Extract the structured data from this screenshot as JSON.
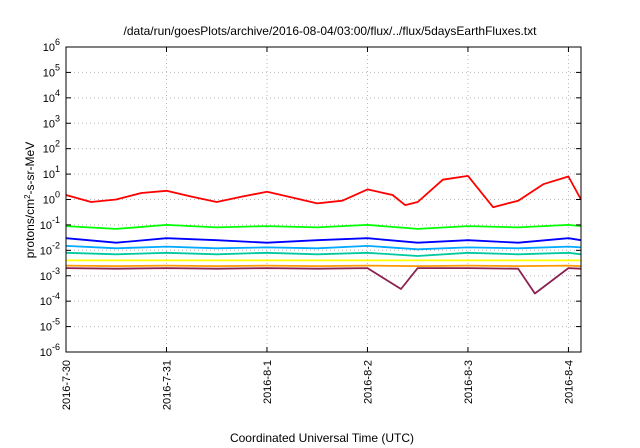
{
  "chart_data": {
    "type": "line",
    "title": "/data/run/goesPlots/archive/2016-08-04/03:00/flux/../flux/5daysEarthFluxes.txt",
    "xlabel": "Coordinated Universal Time (UTC)",
    "ylabel": "protons/cm2-s-sr-MeV",
    "ylabel_parts": {
      "pre": "protons/cm",
      "sup": "2",
      "post": "-s-sr-MeV"
    },
    "yscale": "log",
    "xlim": [
      "2016-07-30 00:00",
      "2016-08-04 03:00"
    ],
    "ylim": [
      1e-06,
      1000000.0
    ],
    "grid": true,
    "x_ticks": [
      "2016-7-30",
      "2016-7-31",
      "2016-8-1",
      "2016-8-2",
      "2016-8-3",
      "2016-8-4"
    ],
    "y_ticks": [
      {
        "base": "10",
        "exp": "-6",
        "value": 1e-06
      },
      {
        "base": "10",
        "exp": "-5",
        "value": 1e-05
      },
      {
        "base": "10",
        "exp": "-4",
        "value": 0.0001
      },
      {
        "base": "10",
        "exp": "-3",
        "value": 0.001
      },
      {
        "base": "10",
        "exp": "-2",
        "value": 0.01
      },
      {
        "base": "10",
        "exp": "-1",
        "value": 0.1
      },
      {
        "base": "10",
        "exp": "0",
        "value": 1
      },
      {
        "base": "10",
        "exp": "1",
        "value": 10
      },
      {
        "base": "10",
        "exp": "2",
        "value": 100
      },
      {
        "base": "10",
        "exp": "3",
        "value": 1000
      },
      {
        "base": "10",
        "exp": "4",
        "value": 10000
      },
      {
        "base": "10",
        "exp": "5",
        "value": 100000
      },
      {
        "base": "10",
        "exp": "6",
        "value": 1000000
      }
    ],
    "series": [
      {
        "color": "#ff0000",
        "x": [
          "2016-07-30 00:00",
          "2016-07-30 06:00",
          "2016-07-30 12:00",
          "2016-07-30 18:00",
          "2016-07-31 00:00",
          "2016-07-31 06:00",
          "2016-07-31 12:00",
          "2016-07-31 18:00",
          "2016-08-01 00:00",
          "2016-08-01 06:00",
          "2016-08-01 12:00",
          "2016-08-01 18:00",
          "2016-08-02 00:00",
          "2016-08-02 06:00",
          "2016-08-02 09:00",
          "2016-08-02 12:00",
          "2016-08-02 18:00",
          "2016-08-03 00:00",
          "2016-08-03 06:00",
          "2016-08-03 12:00",
          "2016-08-03 18:00",
          "2016-08-04 00:00",
          "2016-08-04 03:00"
        ],
        "values": [
          1.5,
          0.8,
          1.0,
          1.8,
          2.2,
          1.3,
          0.8,
          1.3,
          2.0,
          1.2,
          0.7,
          0.9,
          2.5,
          1.5,
          0.6,
          0.8,
          6.0,
          8.5,
          0.5,
          0.9,
          4.0,
          8.0,
          1.0
        ]
      },
      {
        "color": "#00ff00",
        "x": [
          "2016-07-30 00:00",
          "2016-07-30 12:00",
          "2016-07-31 00:00",
          "2016-07-31 12:00",
          "2016-08-01 00:00",
          "2016-08-01 12:00",
          "2016-08-02 00:00",
          "2016-08-02 12:00",
          "2016-08-03 00:00",
          "2016-08-03 12:00",
          "2016-08-04 00:00",
          "2016-08-04 03:00"
        ],
        "values": [
          0.09,
          0.07,
          0.1,
          0.08,
          0.09,
          0.08,
          0.1,
          0.07,
          0.09,
          0.08,
          0.1,
          0.09
        ]
      },
      {
        "color": "#0000ff",
        "x": [
          "2016-07-30 00:00",
          "2016-07-30 12:00",
          "2016-07-31 00:00",
          "2016-07-31 12:00",
          "2016-08-01 00:00",
          "2016-08-01 12:00",
          "2016-08-02 00:00",
          "2016-08-02 12:00",
          "2016-08-03 00:00",
          "2016-08-03 12:00",
          "2016-08-04 00:00",
          "2016-08-04 03:00"
        ],
        "values": [
          0.03,
          0.02,
          0.03,
          0.025,
          0.02,
          0.025,
          0.03,
          0.02,
          0.025,
          0.02,
          0.03,
          0.025
        ]
      },
      {
        "color": "#00aaff",
        "x": [
          "2016-07-30 00:00",
          "2016-07-30 12:00",
          "2016-07-31 00:00",
          "2016-07-31 12:00",
          "2016-08-01 00:00",
          "2016-08-01 12:00",
          "2016-08-02 00:00",
          "2016-08-02 12:00",
          "2016-08-03 00:00",
          "2016-08-03 12:00",
          "2016-08-04 00:00",
          "2016-08-04 03:00"
        ],
        "values": [
          0.015,
          0.012,
          0.014,
          0.012,
          0.013,
          0.012,
          0.015,
          0.011,
          0.013,
          0.012,
          0.014,
          0.013
        ]
      },
      {
        "color": "#00c8a0",
        "x": [
          "2016-07-30 00:00",
          "2016-07-30 12:00",
          "2016-07-31 00:00",
          "2016-07-31 12:00",
          "2016-08-01 00:00",
          "2016-08-01 12:00",
          "2016-08-02 00:00",
          "2016-08-02 12:00",
          "2016-08-03 00:00",
          "2016-08-03 12:00",
          "2016-08-04 00:00",
          "2016-08-04 03:00"
        ],
        "values": [
          0.008,
          0.007,
          0.008,
          0.007,
          0.008,
          0.007,
          0.008,
          0.006,
          0.008,
          0.007,
          0.008,
          0.007
        ]
      },
      {
        "color": "#ffff00",
        "x": [
          "2016-07-30 00:00",
          "2016-07-30 12:00",
          "2016-07-31 00:00",
          "2016-07-31 12:00",
          "2016-08-01 00:00",
          "2016-08-01 12:00",
          "2016-08-02 00:00",
          "2016-08-02 12:00",
          "2016-08-03 00:00",
          "2016-08-03 12:00",
          "2016-08-04 00:00",
          "2016-08-04 03:00"
        ],
        "values": [
          0.004,
          0.004,
          0.004,
          0.004,
          0.004,
          0.004,
          0.004,
          0.004,
          0.004,
          0.004,
          0.004,
          0.004
        ]
      },
      {
        "color": "#ff9900",
        "x": [
          "2016-07-30 00:00",
          "2016-07-30 12:00",
          "2016-07-31 00:00",
          "2016-07-31 12:00",
          "2016-08-01 00:00",
          "2016-08-01 12:00",
          "2016-08-02 00:00",
          "2016-08-02 12:00",
          "2016-08-03 00:00",
          "2016-08-03 12:00",
          "2016-08-04 00:00",
          "2016-08-04 03:00"
        ],
        "values": [
          0.0025,
          0.0024,
          0.0025,
          0.0024,
          0.0025,
          0.0024,
          0.0025,
          0.0024,
          0.0025,
          0.0024,
          0.0025,
          0.0024
        ]
      },
      {
        "color": "#8b2252",
        "x": [
          "2016-07-30 00:00",
          "2016-07-30 12:00",
          "2016-07-31 00:00",
          "2016-07-31 12:00",
          "2016-08-01 00:00",
          "2016-08-01 12:00",
          "2016-08-02 00:00",
          "2016-08-02 08:00",
          "2016-08-02 12:00",
          "2016-08-03 00:00",
          "2016-08-03 12:00",
          "2016-08-03 16:00",
          "2016-08-04 00:00",
          "2016-08-04 03:00"
        ],
        "values": [
          0.002,
          0.0019,
          0.002,
          0.0019,
          0.002,
          0.0019,
          0.002,
          0.0003,
          0.002,
          0.002,
          0.0019,
          0.0002,
          0.002,
          0.0019
        ]
      }
    ]
  }
}
